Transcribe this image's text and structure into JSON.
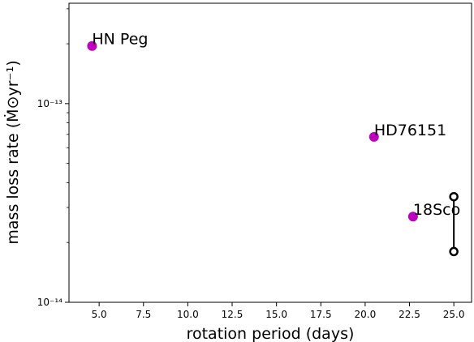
{
  "chart_data": {
    "type": "scatter",
    "xlabel": "rotation period (days)",
    "ylabel": "mass loss rate (Ṁ⊙yr⁻¹)",
    "xlim": [
      3.3,
      26.0
    ],
    "ylim": [
      1e-14,
      3.2e-13
    ],
    "yscale": "log",
    "grid": false,
    "x_ticks": [
      5.0,
      7.5,
      10.0,
      12.5,
      15.0,
      17.5,
      20.0,
      22.5,
      25.0
    ],
    "x_tick_labels": [
      "5.0",
      "7.5",
      "10.0",
      "12.5",
      "15.0",
      "17.5",
      "20.0",
      "22.5",
      "25.0"
    ],
    "y_major_ticks": [
      1e-14,
      1e-13
    ],
    "y_tick_labels": [
      "10⁻¹⁴",
      "10⁻¹³"
    ],
    "points": [
      {
        "label": "HN Peg",
        "x": 4.6,
        "y": 1.95e-13
      },
      {
        "label": "HD76151",
        "x": 20.5,
        "y": 6.8e-14
      },
      {
        "label": "18Sco",
        "x": 22.7,
        "y": 2.7e-14
      }
    ],
    "range_marker": {
      "x": 25.0,
      "y_low": 1.8e-14,
      "y_high": 3.4e-14
    },
    "colors": {
      "points": "#bf00bf",
      "range": "#000000"
    }
  }
}
